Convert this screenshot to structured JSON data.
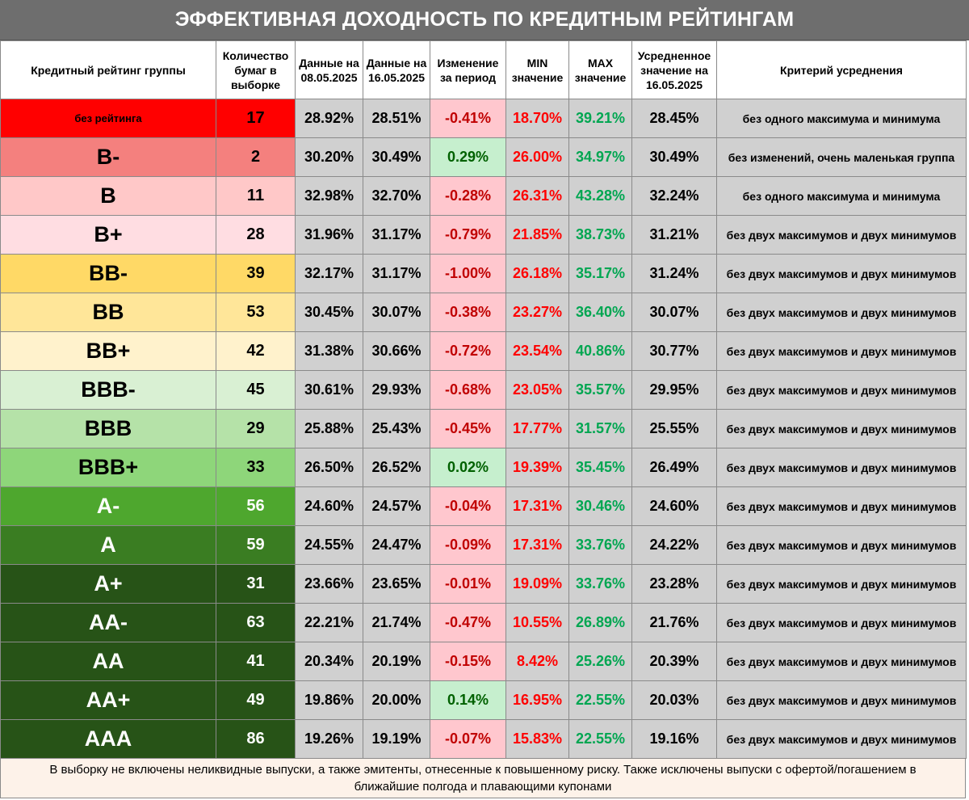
{
  "title": "ЭФФЕКТИВНАЯ ДОХОДНОСТЬ ПО КРЕДИТНЫМ РЕЙТИНГАМ",
  "headers": {
    "rating": "Кредитный рейтинг группы",
    "count": "Количество бумаг в выборке",
    "data1": "Данные на 08.05.2025",
    "data2": "Данные на 16.05.2025",
    "change": "Изменение за период",
    "min": "MIN значение",
    "max": "MAX значение",
    "avg": "Усредненное значение на 16.05.2025",
    "criterion": "Критерий усреднения"
  },
  "rows": [
    {
      "rating": "без рейтинга",
      "count": "17",
      "d1": "28.92%",
      "d2": "28.51%",
      "change": "-0.41%",
      "min": "18.70%",
      "max": "39.21%",
      "avg": "28.45%",
      "criterion": "без одного максимума и минимума",
      "color": "#ff0000",
      "text_color": "#000000",
      "count_color": "#ff0000"
    },
    {
      "rating": "B-",
      "count": "2",
      "d1": "30.20%",
      "d2": "30.49%",
      "change": "0.29%",
      "min": "26.00%",
      "max": "34.97%",
      "avg": "30.49%",
      "criterion": "без изменений, очень маленькая группа",
      "color": "#f4807e",
      "text_color": "#000000",
      "count_color": "#f4807e"
    },
    {
      "rating": "B",
      "count": "11",
      "d1": "32.98%",
      "d2": "32.70%",
      "change": "-0.28%",
      "min": "26.31%",
      "max": "43.28%",
      "avg": "32.24%",
      "criterion": "без одного максимума и минимума",
      "color": "#ffc8c8",
      "text_color": "#000000",
      "count_color": "#ffc8c8"
    },
    {
      "rating": "B+",
      "count": "28",
      "d1": "31.96%",
      "d2": "31.17%",
      "change": "-0.79%",
      "min": "21.85%",
      "max": "38.73%",
      "avg": "31.21%",
      "criterion": "без двух максимумов и двух минимумов",
      "color": "#ffdde2",
      "text_color": "#000000",
      "count_color": "#ffdde2"
    },
    {
      "rating": "BB-",
      "count": "39",
      "d1": "32.17%",
      "d2": "31.17%",
      "change": "-1.00%",
      "min": "26.18%",
      "max": "35.17%",
      "avg": "31.24%",
      "criterion": "без двух максимумов и двух минимумов",
      "color": "#ffd966",
      "text_color": "#000000",
      "count_color": "#ffd966"
    },
    {
      "rating": "BB",
      "count": "53",
      "d1": "30.45%",
      "d2": "30.07%",
      "change": "-0.38%",
      "min": "23.27%",
      "max": "36.40%",
      "avg": "30.07%",
      "criterion": "без двух максимумов и двух минимумов",
      "color": "#ffe699",
      "text_color": "#000000",
      "count_color": "#ffe699"
    },
    {
      "rating": "BB+",
      "count": "42",
      "d1": "31.38%",
      "d2": "30.66%",
      "change": "-0.72%",
      "min": "23.54%",
      "max": "40.86%",
      "avg": "30.77%",
      "criterion": "без двух максимумов и двух минимумов",
      "color": "#fff2cc",
      "text_color": "#000000",
      "count_color": "#fff2cc"
    },
    {
      "rating": "BBB-",
      "count": "45",
      "d1": "30.61%",
      "d2": "29.93%",
      "change": "-0.68%",
      "min": "23.05%",
      "max": "35.57%",
      "avg": "29.95%",
      "criterion": "без двух максимумов и двух минимумов",
      "color": "#d9f0d3",
      "text_color": "#000000",
      "count_color": "#d9f0d3"
    },
    {
      "rating": "BBB",
      "count": "29",
      "d1": "25.88%",
      "d2": "25.43%",
      "change": "-0.45%",
      "min": "17.77%",
      "max": "31.57%",
      "avg": "25.55%",
      "criterion": "без двух максимумов и двух минимумов",
      "color": "#b5e2a8",
      "text_color": "#000000",
      "count_color": "#b5e2a8"
    },
    {
      "rating": "BBB+",
      "count": "33",
      "d1": "26.50%",
      "d2": "26.52%",
      "change": "0.02%",
      "min": "19.39%",
      "max": "35.45%",
      "avg": "26.49%",
      "criterion": "без двух максимумов и двух минимумов",
      "color": "#8ed67a",
      "text_color": "#000000",
      "count_color": "#8ed67a"
    },
    {
      "rating": "A-",
      "count": "56",
      "d1": "24.60%",
      "d2": "24.57%",
      "change": "-0.04%",
      "min": "17.31%",
      "max": "30.46%",
      "avg": "24.60%",
      "criterion": "без двух максимумов и двух минимумов",
      "color": "#4ea72e",
      "text_color": "#ffffff",
      "count_color": "#4ea72e"
    },
    {
      "rating": "A",
      "count": "59",
      "d1": "24.55%",
      "d2": "24.47%",
      "change": "-0.09%",
      "min": "17.31%",
      "max": "33.76%",
      "avg": "24.22%",
      "criterion": "без двух максимумов и двух минимумов",
      "color": "#3a7d22",
      "text_color": "#ffffff",
      "count_color": "#3a7d22"
    },
    {
      "rating": "A+",
      "count": "31",
      "d1": "23.66%",
      "d2": "23.65%",
      "change": "-0.01%",
      "min": "19.09%",
      "max": "33.76%",
      "avg": "23.28%",
      "criterion": "без двух максимумов и двух минимумов",
      "color": "#275317",
      "text_color": "#ffffff",
      "count_color": "#275317"
    },
    {
      "rating": "AA-",
      "count": "63",
      "d1": "22.21%",
      "d2": "21.74%",
      "change": "-0.47%",
      "min": "10.55%",
      "max": "26.89%",
      "avg": "21.76%",
      "criterion": "без двух максимумов и двух минимумов",
      "color": "#275317",
      "text_color": "#ffffff",
      "count_color": "#275317"
    },
    {
      "rating": "AA",
      "count": "41",
      "d1": "20.34%",
      "d2": "20.19%",
      "change": "-0.15%",
      "min": "8.42%",
      "max": "25.26%",
      "avg": "20.39%",
      "criterion": "без двух максимумов и двух минимумов",
      "color": "#275317",
      "text_color": "#ffffff",
      "count_color": "#275317"
    },
    {
      "rating": "AA+",
      "count": "49",
      "d1": "19.86%",
      "d2": "20.00%",
      "change": "0.14%",
      "min": "16.95%",
      "max": "22.55%",
      "avg": "20.03%",
      "criterion": "без двух максимумов и двух минимумов",
      "color": "#275317",
      "text_color": "#ffffff",
      "count_color": "#275317"
    },
    {
      "rating": "AAA",
      "count": "86",
      "d1": "19.26%",
      "d2": "19.19%",
      "change": "-0.07%",
      "min": "15.83%",
      "max": "22.55%",
      "avg": "19.16%",
      "criterion": "без двух максимумов и двух минимумов",
      "color": "#275317",
      "text_color": "#ffffff",
      "count_color": "#275317"
    }
  ],
  "footer": "В выборку не включены неликвидные выпуски, а также эмитенты, отнесенные к повышенному риску. Также исключены выпуски с офертой/погашением в ближайшие полгода и плавающими купонами"
}
